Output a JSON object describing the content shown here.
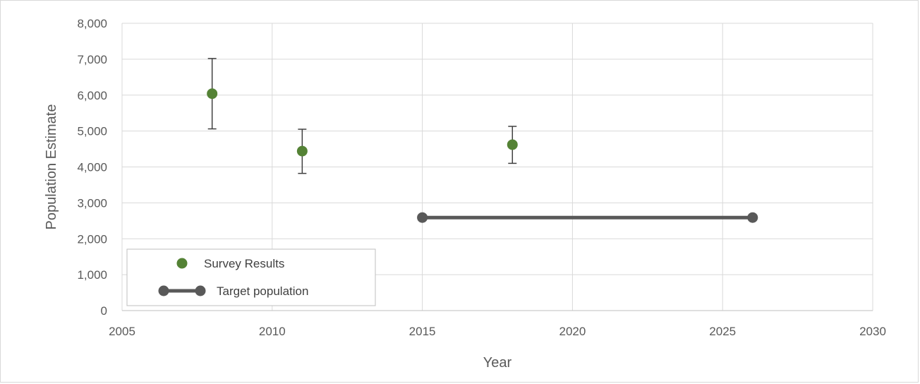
{
  "chart_data": {
    "type": "scatter",
    "title": "",
    "xlabel": "Year",
    "ylabel": "Population Estimate",
    "xlim": [
      2005,
      2030
    ],
    "ylim": [
      0,
      8000
    ],
    "x_ticks": [
      2005,
      2010,
      2015,
      2020,
      2025,
      2030
    ],
    "x_tick_labels": [
      "2005",
      "2010",
      "2015",
      "2020",
      "2025",
      "2030"
    ],
    "y_ticks": [
      0,
      1000,
      2000,
      3000,
      4000,
      5000,
      6000,
      7000,
      8000
    ],
    "y_tick_labels": [
      "0",
      "1,000",
      "2,000",
      "3,000",
      "4,000",
      "5,000",
      "6,000",
      "7,000",
      "8,000"
    ],
    "grid": true,
    "legend_position": "bottom-left",
    "series": [
      {
        "name": "Survey Results",
        "kind": "scatter",
        "color": "#548235",
        "points": [
          {
            "x": 2008,
            "y": 6040,
            "err_low": 5060,
            "err_high": 7020
          },
          {
            "x": 2011,
            "y": 4440,
            "err_low": 3820,
            "err_high": 5050
          },
          {
            "x": 2018,
            "y": 4620,
            "err_low": 4100,
            "err_high": 5130
          }
        ]
      },
      {
        "name": "Target population",
        "kind": "line",
        "color": "#595959",
        "points": [
          {
            "x": 2015,
            "y": 2590
          },
          {
            "x": 2026,
            "y": 2590
          }
        ]
      }
    ]
  }
}
